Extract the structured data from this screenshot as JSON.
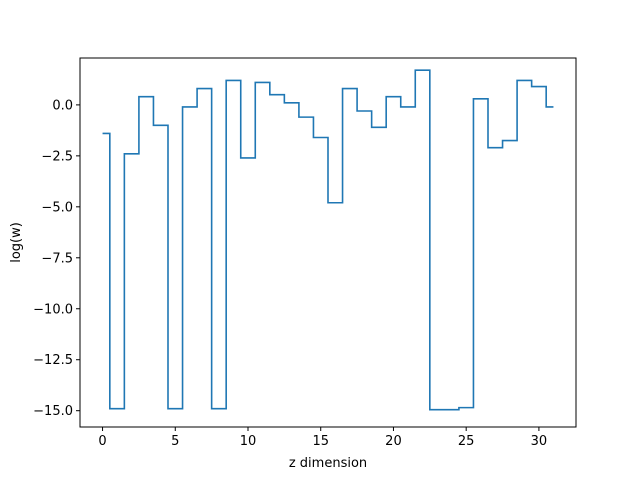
{
  "chart_data": {
    "type": "line",
    "drawstyle": "steps-mid",
    "title": "",
    "xlabel": "z dimension",
    "ylabel": "log(w)",
    "xlim": [
      -1.55,
      32.55
    ],
    "ylim": [
      -15.8,
      2.3
    ],
    "xticks": [
      0,
      5,
      10,
      15,
      20,
      25,
      30
    ],
    "xtick_labels": [
      "0",
      "5",
      "10",
      "15",
      "20",
      "25",
      "30"
    ],
    "yticks": [
      0.0,
      -2.5,
      -5.0,
      -7.5,
      -10.0,
      -12.5,
      -15.0
    ],
    "ytick_labels": [
      "0.0",
      "−2.5",
      "−5.0",
      "−7.5",
      "−10.0",
      "−12.5",
      "−15.0"
    ],
    "grid": false,
    "series": [
      {
        "color": "#1f77b4",
        "x": [
          0,
          1,
          2,
          3,
          4,
          5,
          6,
          7,
          8,
          9,
          10,
          11,
          12,
          13,
          14,
          15,
          16,
          17,
          18,
          19,
          20,
          21,
          22,
          23,
          24,
          25,
          26,
          27,
          28,
          29,
          30,
          31
        ],
        "y": [
          -1.4,
          -14.9,
          -2.4,
          0.4,
          -1.0,
          -14.9,
          -0.1,
          0.8,
          -14.9,
          1.2,
          -2.6,
          1.1,
          0.5,
          0.1,
          -0.6,
          -1.6,
          -4.8,
          0.8,
          -0.3,
          -1.1,
          0.4,
          -0.1,
          1.7,
          -14.95,
          -14.95,
          -14.85,
          0.3,
          -2.1,
          -1.75,
          1.2,
          0.9,
          -0.1
        ]
      }
    ]
  }
}
